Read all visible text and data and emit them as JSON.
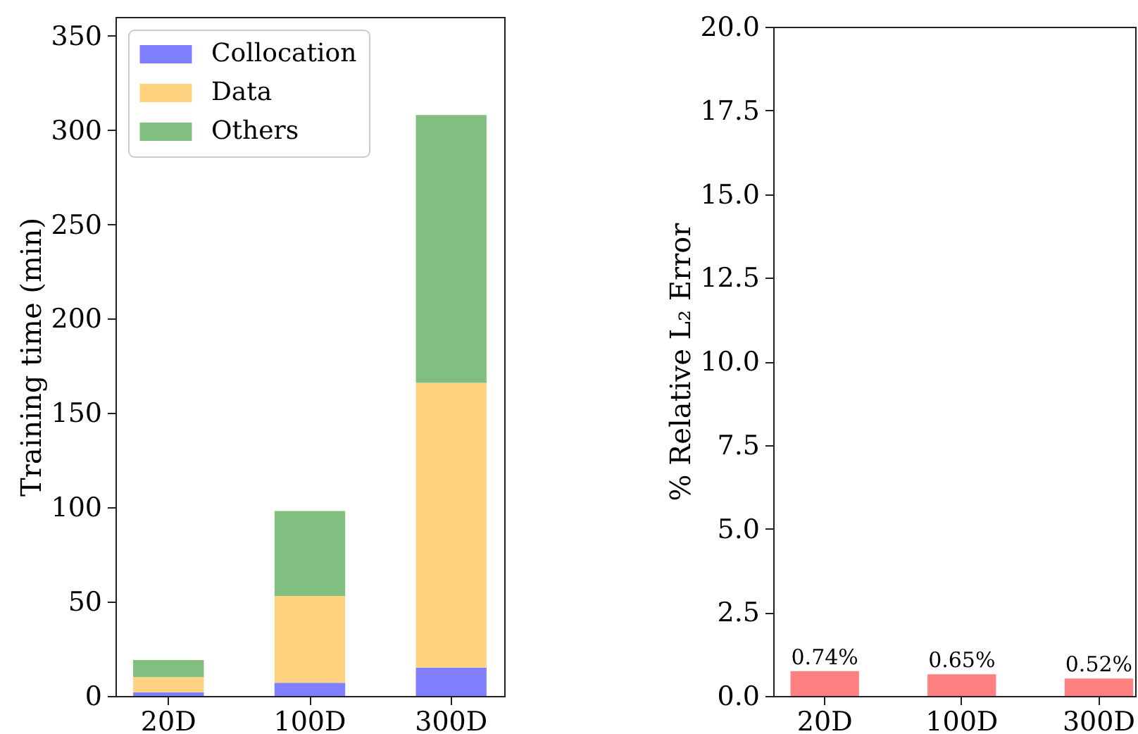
{
  "chart_data": [
    {
      "type": "bar",
      "categories": [
        "20D",
        "100D",
        "300D"
      ],
      "series": [
        {
          "name": "Collocation",
          "color": "#8080ff",
          "values": [
            2,
            7,
            15
          ]
        },
        {
          "name": "Data",
          "color": "#ffd280",
          "values": [
            8,
            46,
            151
          ]
        },
        {
          "name": "Others",
          "color": "#80bf80",
          "values": [
            9,
            45,
            142
          ]
        }
      ],
      "stacked": true,
      "ylabel": "Training time (min)",
      "ylim": [
        0,
        360
      ],
      "yticks": [
        0,
        50,
        100,
        150,
        200,
        250,
        300,
        350
      ],
      "legend": "top left"
    },
    {
      "type": "bar",
      "categories": [
        "20D",
        "100D",
        "300D"
      ],
      "values": [
        0.74,
        0.65,
        0.52
      ],
      "color": "#ff8080",
      "value_labels": [
        "0.74%",
        "0.65%",
        "0.52%"
      ],
      "ylabel": "% Relative L₂ Error",
      "ylim": [
        0,
        20
      ],
      "yticks": [
        {
          "value": 0,
          "label": "0.0"
        },
        2.5,
        {
          "value": 5,
          "label": "5.0"
        },
        7.5,
        {
          "value": 10,
          "label": "10.0"
        },
        12.5,
        {
          "value": 15,
          "label": "15.0"
        },
        17.5,
        {
          "value": 20,
          "label": "20.0"
        }
      ]
    }
  ]
}
